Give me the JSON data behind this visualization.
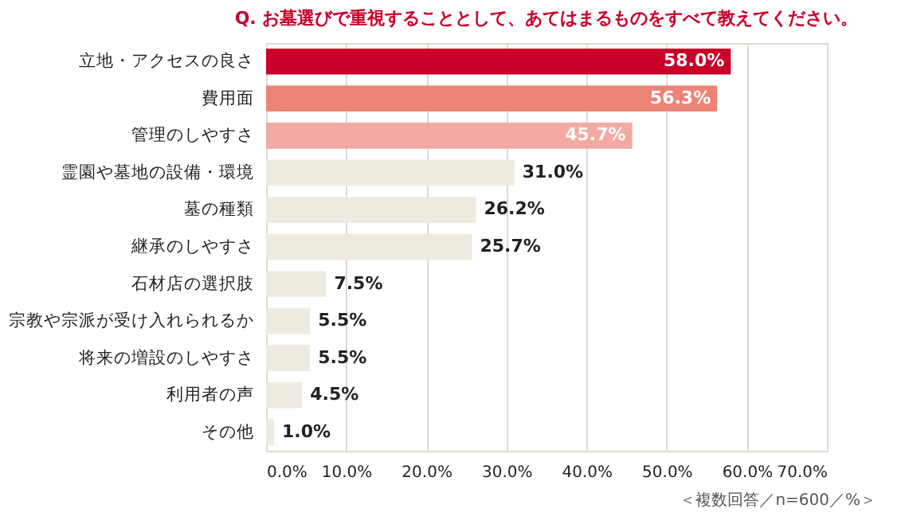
{
  "chart_data": {
    "type": "bar",
    "orientation": "horizontal",
    "title": "Q. お墓選びで重視することとして、あてはまるものをすべて教えてください。",
    "categories": [
      "立地・アクセスの良さ",
      "費用面",
      "管理のしやすさ",
      "霊園や墓地の設備・環境",
      "墓の種類",
      "継承のしやすさ",
      "石材店の選択肢",
      "宗教や宗派が受け入れられるか",
      "将来の増設のしやすさ",
      "利用者の声",
      "その他"
    ],
    "values": [
      58.0,
      56.3,
      45.7,
      31.0,
      26.2,
      25.7,
      7.5,
      5.5,
      5.5,
      4.5,
      1.0
    ],
    "value_labels": [
      "58.0%",
      "56.3%",
      "45.7%",
      "31.0%",
      "26.2%",
      "25.7%",
      "7.5%",
      "5.5%",
      "5.5%",
      "4.5%",
      "1.0%"
    ],
    "colors": [
      "#c8002a",
      "#ec8377",
      "#f2aaa2",
      "#edeae0",
      "#edeae0",
      "#edeae0",
      "#edeae0",
      "#edeae0",
      "#edeae0",
      "#edeae0",
      "#edeae0"
    ],
    "xlim": [
      0,
      70
    ],
    "xticks": [
      {
        "value": 0,
        "label": "0.0%"
      },
      {
        "value": 10,
        "label": "10.0%"
      },
      {
        "value": 20,
        "label": "20.0%"
      },
      {
        "value": 30,
        "label": "30.0%"
      },
      {
        "value": 40,
        "label": "40.0%"
      },
      {
        "value": 50,
        "label": "50.0%"
      },
      {
        "value": 60,
        "label": "60.0%"
      },
      {
        "value": 70,
        "label": "70.0%"
      }
    ],
    "grid": true,
    "annotations": [
      "＜複数回答／n=600／%＞"
    ]
  }
}
